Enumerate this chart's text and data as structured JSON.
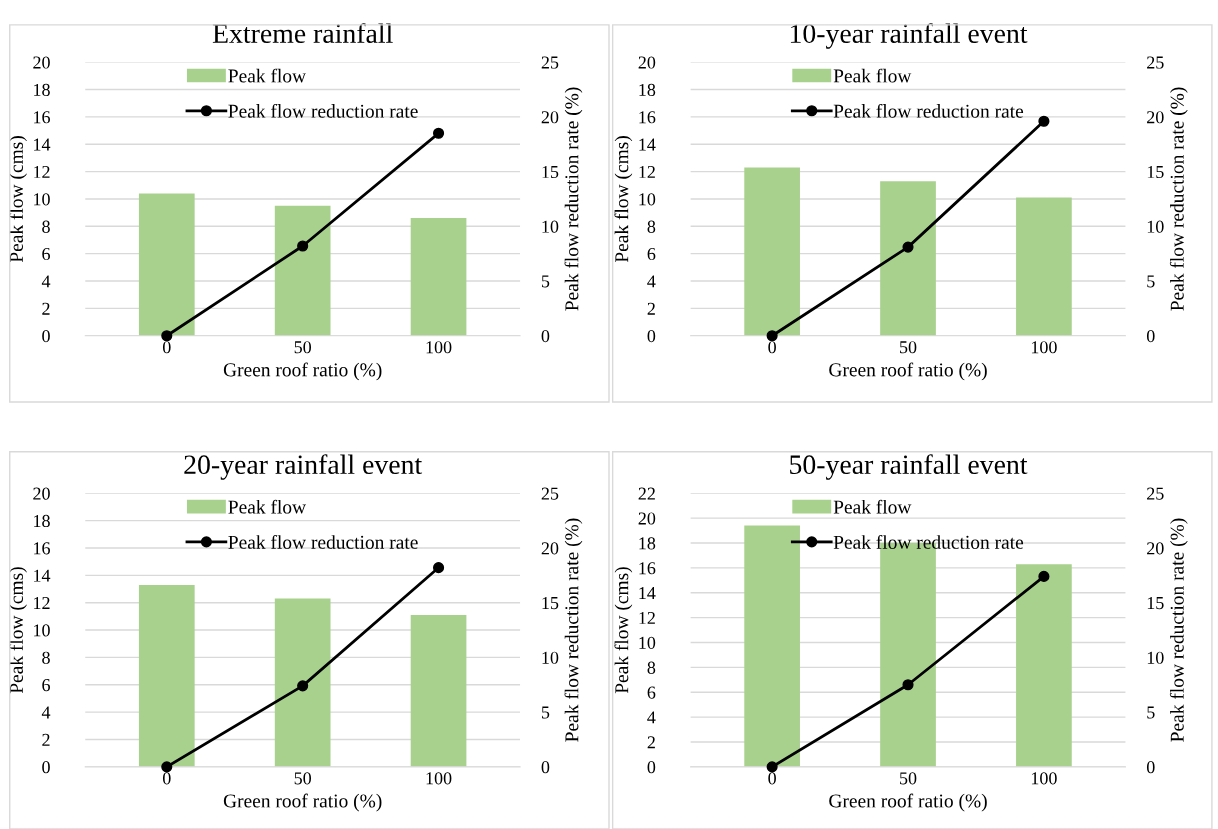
{
  "chart_data": [
    {
      "type": "bar",
      "title": "Extreme rainfall",
      "xlabel": "Green roof ratio (%)",
      "ylabel": "Peak flow (cms)",
      "y2label": "Peak flow reduction rate (%)",
      "x": [
        0,
        50,
        100
      ],
      "xlim": [
        -30,
        130
      ],
      "xticks": [
        0,
        50,
        100
      ],
      "ylim": [
        0,
        20
      ],
      "yticks": [
        0,
        2,
        4,
        6,
        8,
        10,
        12,
        14,
        16,
        18,
        20
      ],
      "y2lim": [
        0,
        25
      ],
      "y2ticks": [
        0,
        5,
        10,
        15,
        20,
        25
      ],
      "grid": "y",
      "legend": "top",
      "series": [
        {
          "name": "Peak flow",
          "type": "bar",
          "color": "#a9d18e",
          "values": [
            10.4,
            9.5,
            8.6
          ]
        },
        {
          "name": "Peak flow reduction rate",
          "type": "line",
          "axis": "y2",
          "color": "#000000",
          "marker": "circle",
          "values": [
            0,
            8.2,
            18.5
          ]
        }
      ]
    },
    {
      "type": "bar",
      "title": "10-year rainfall event",
      "xlabel": "Green roof ratio (%)",
      "ylabel": "Peak flow (cms)",
      "y2label": "Peak flow reduction rate (%)",
      "x": [
        0,
        50,
        100
      ],
      "xlim": [
        -30,
        130
      ],
      "xticks": [
        0,
        50,
        100
      ],
      "ylim": [
        0,
        20
      ],
      "yticks": [
        0,
        2,
        4,
        6,
        8,
        10,
        12,
        14,
        16,
        18,
        20
      ],
      "y2lim": [
        0,
        25
      ],
      "y2ticks": [
        0,
        5,
        10,
        15,
        20,
        25
      ],
      "grid": "y",
      "legend": "top",
      "series": [
        {
          "name": "Peak flow",
          "type": "bar",
          "color": "#a9d18e",
          "values": [
            12.3,
            11.3,
            10.1
          ]
        },
        {
          "name": "Peak flow reduction rate",
          "type": "line",
          "axis": "y2",
          "color": "#000000",
          "marker": "circle",
          "values": [
            0,
            8.1,
            19.6
          ]
        }
      ]
    },
    {
      "type": "bar",
      "title": "20-year rainfall event",
      "xlabel": "Green roof ratio (%)",
      "ylabel": "Peak flow (cms)",
      "y2label": "Peak flow reduction rate (%)",
      "x": [
        0,
        50,
        100
      ],
      "xlim": [
        -30,
        130
      ],
      "xticks": [
        0,
        50,
        100
      ],
      "ylim": [
        0,
        20
      ],
      "yticks": [
        0,
        2,
        4,
        6,
        8,
        10,
        12,
        14,
        16,
        18,
        20
      ],
      "y2lim": [
        0,
        25
      ],
      "y2ticks": [
        0,
        5,
        10,
        15,
        20,
        25
      ],
      "grid": "y",
      "legend": "top",
      "series": [
        {
          "name": "Peak flow",
          "type": "bar",
          "color": "#a9d18e",
          "values": [
            13.3,
            12.3,
            11.1
          ]
        },
        {
          "name": "Peak flow reduction rate",
          "type": "line",
          "axis": "y2",
          "color": "#000000",
          "marker": "circle",
          "values": [
            0,
            7.4,
            18.2
          ]
        }
      ]
    },
    {
      "type": "bar",
      "title": "50-year rainfall event",
      "xlabel": "Green roof ratio (%)",
      "ylabel": "Peak flow (cms)",
      "y2label": "Peak flow reduction rate (%)",
      "x": [
        0,
        50,
        100
      ],
      "xlim": [
        -30,
        130
      ],
      "xticks": [
        0,
        50,
        100
      ],
      "ylim": [
        0,
        22
      ],
      "yticks": [
        0,
        2,
        4,
        6,
        8,
        10,
        12,
        14,
        16,
        18,
        20,
        22
      ],
      "y2lim": [
        0,
        25
      ],
      "y2ticks": [
        0,
        5,
        10,
        15,
        20,
        25
      ],
      "grid": "y",
      "legend": "top",
      "series": [
        {
          "name": "Peak flow",
          "type": "bar",
          "color": "#a9d18e",
          "values": [
            19.4,
            18.0,
            16.3
          ]
        },
        {
          "name": "Peak flow reduction rate",
          "type": "line",
          "axis": "y2",
          "color": "#000000",
          "marker": "circle",
          "values": [
            0,
            7.5,
            17.4
          ]
        }
      ]
    }
  ]
}
